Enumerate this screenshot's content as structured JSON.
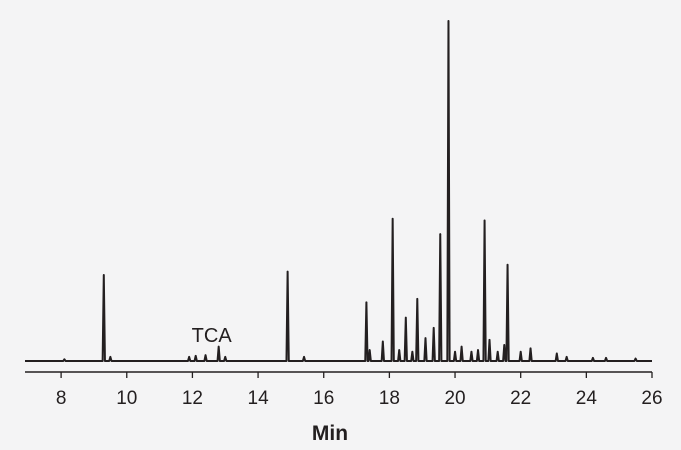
{
  "chart_data": {
    "type": "line",
    "title": "",
    "xlabel": "Min",
    "ylabel": "",
    "xlim": [
      6.9,
      26.0
    ],
    "ylim": [
      0,
      100
    ],
    "x_ticks": [
      8,
      10,
      12,
      14,
      16,
      18,
      20,
      22,
      24,
      26
    ],
    "x_tick_labels": [
      "8",
      "10",
      "12",
      "14",
      "16",
      "18",
      "20",
      "22",
      "24",
      "26"
    ],
    "grid": false,
    "legend": "none",
    "line_color": "#231f20",
    "background": "#f4f4f5",
    "baseline": 0.3,
    "annotations": [
      {
        "text": "TCA",
        "x": 12.8
      }
    ],
    "series": [
      {
        "peaks": [
          {
            "x": 8.1,
            "y": 0.8
          },
          {
            "x": 9.3,
            "y": 25.5
          },
          {
            "x": 9.5,
            "y": 1.5
          },
          {
            "x": 11.9,
            "y": 1.5
          },
          {
            "x": 12.1,
            "y": 1.8
          },
          {
            "x": 12.4,
            "y": 2.0
          },
          {
            "x": 12.8,
            "y": 4.5
          },
          {
            "x": 13.0,
            "y": 1.5
          },
          {
            "x": 14.9,
            "y": 26.5
          },
          {
            "x": 15.4,
            "y": 1.5
          },
          {
            "x": 17.3,
            "y": 17.5
          },
          {
            "x": 17.4,
            "y": 3.5
          },
          {
            "x": 17.8,
            "y": 6.0
          },
          {
            "x": 18.1,
            "y": 42.0
          },
          {
            "x": 18.3,
            "y": 3.5
          },
          {
            "x": 18.5,
            "y": 13.0
          },
          {
            "x": 18.7,
            "y": 3.0
          },
          {
            "x": 18.85,
            "y": 18.5
          },
          {
            "x": 19.1,
            "y": 7.0
          },
          {
            "x": 19.35,
            "y": 10.0
          },
          {
            "x": 19.55,
            "y": 37.5
          },
          {
            "x": 19.8,
            "y": 100.0
          },
          {
            "x": 20.0,
            "y": 3.0
          },
          {
            "x": 20.2,
            "y": 4.5
          },
          {
            "x": 20.5,
            "y": 3.0
          },
          {
            "x": 20.7,
            "y": 3.5
          },
          {
            "x": 20.9,
            "y": 41.5
          },
          {
            "x": 21.05,
            "y": 6.5
          },
          {
            "x": 21.3,
            "y": 3.0
          },
          {
            "x": 21.5,
            "y": 5.0
          },
          {
            "x": 21.6,
            "y": 28.5
          },
          {
            "x": 22.0,
            "y": 3.0
          },
          {
            "x": 22.3,
            "y": 4.0
          },
          {
            "x": 23.1,
            "y": 2.5
          },
          {
            "x": 23.4,
            "y": 1.5
          },
          {
            "x": 24.2,
            "y": 1.2
          },
          {
            "x": 24.6,
            "y": 1.2
          },
          {
            "x": 25.5,
            "y": 1.0
          }
        ]
      }
    ]
  }
}
